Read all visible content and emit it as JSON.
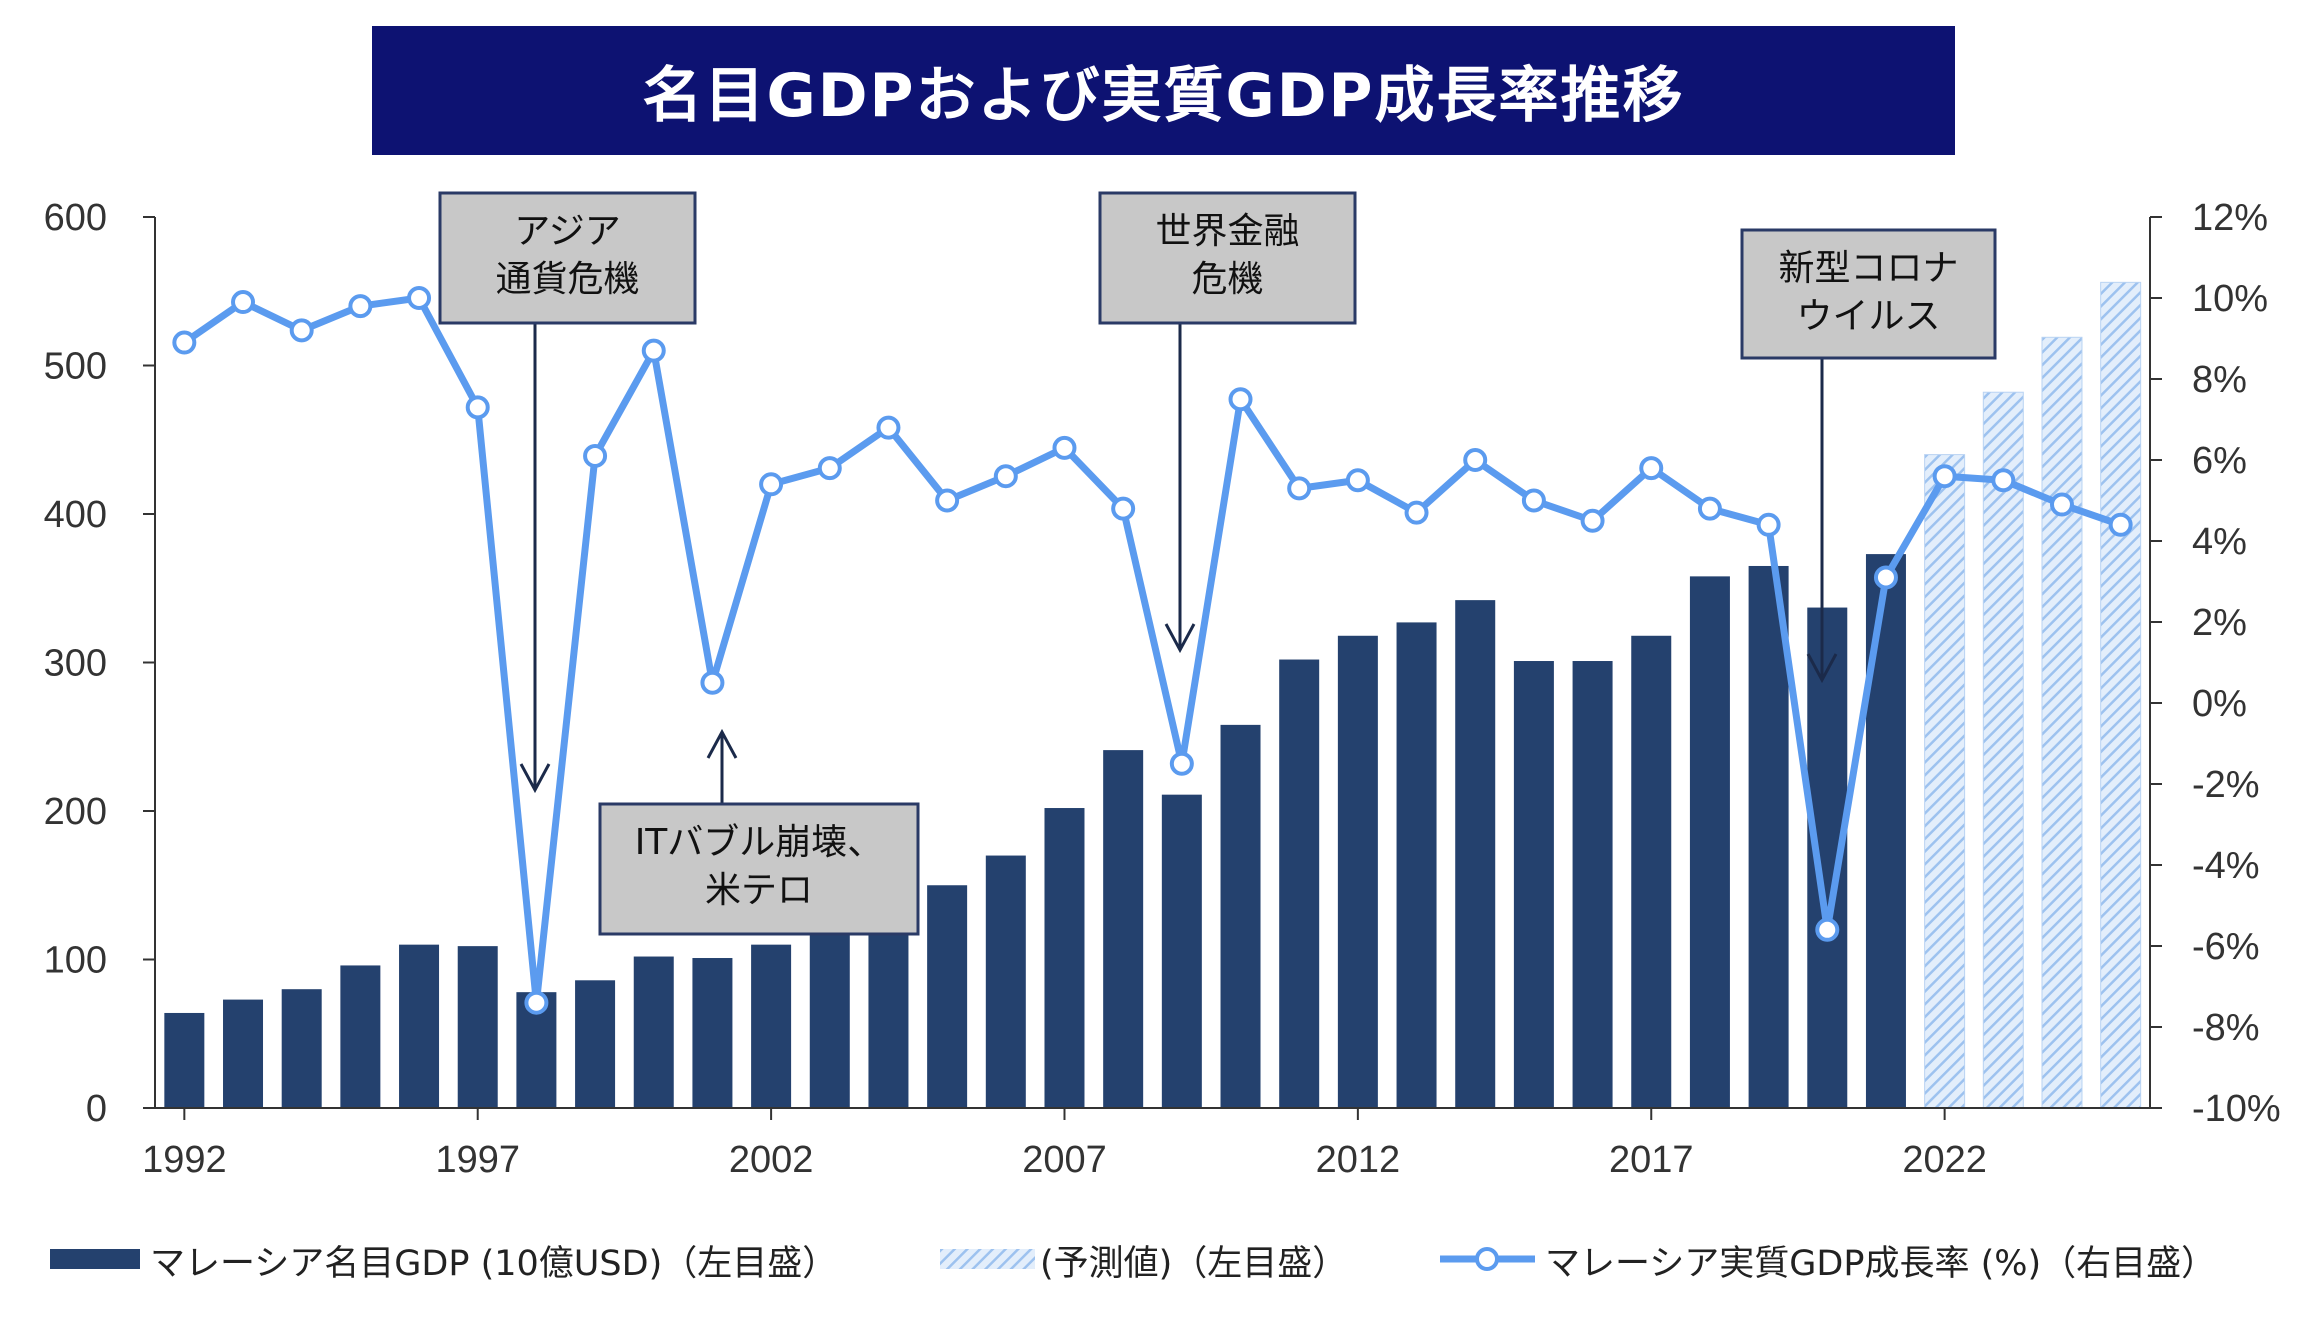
{
  "chart_data": {
    "type": "bar",
    "title": "名目GDPおよび実質GDP成長率推移",
    "x": [
      1992,
      1993,
      1994,
      1995,
      1996,
      1997,
      1998,
      1999,
      2000,
      2001,
      2002,
      2003,
      2004,
      2005,
      2006,
      2007,
      2008,
      2009,
      2010,
      2011,
      2012,
      2013,
      2014,
      2015,
      2016,
      2017,
      2018,
      2019,
      2020,
      2021,
      2022,
      2023,
      2024,
      2025
    ],
    "x_tick_labels": [
      "1992",
      "1997",
      "2002",
      "2007",
      "2012",
      "2017",
      "2022"
    ],
    "y_left": {
      "ylim": [
        0,
        600
      ],
      "ticks": [
        "0",
        "100",
        "200",
        "300",
        "400",
        "500",
        "600"
      ]
    },
    "y_right": {
      "ylim": [
        -10,
        12
      ],
      "ticks": [
        "-10%",
        "-8%",
        "-6%",
        "-4%",
        "-2%",
        "0%",
        "2%",
        "4%",
        "6%",
        "8%",
        "10%",
        "12%"
      ]
    },
    "series": [
      {
        "name": "マレーシア名目GDP (10億USD)（左目盛）",
        "type": "bar",
        "axis": "left",
        "color": "#24416e",
        "values": [
          64,
          73,
          80,
          96,
          110,
          109,
          78,
          86,
          102,
          101,
          110,
          120,
          136,
          150,
          170,
          202,
          241,
          211,
          258,
          302,
          318,
          327,
          342,
          301,
          301,
          318,
          358,
          365,
          337,
          373,
          null,
          null,
          null,
          null
        ]
      },
      {
        "name": "(予測値)（左目盛）",
        "type": "bar-hatched",
        "axis": "left",
        "color": "#a9c8ef",
        "values": [
          null,
          null,
          null,
          null,
          null,
          null,
          null,
          null,
          null,
          null,
          null,
          null,
          null,
          null,
          null,
          null,
          null,
          null,
          null,
          null,
          null,
          null,
          null,
          null,
          null,
          null,
          null,
          null,
          null,
          null,
          440,
          482,
          519,
          556
        ]
      },
      {
        "name": "マレーシア実質GDP成長率 (%)（右目盛）",
        "type": "line",
        "axis": "right",
        "color": "#5b9bef",
        "values": [
          8.9,
          9.9,
          9.2,
          9.8,
          10.0,
          7.3,
          -7.4,
          6.1,
          8.7,
          0.5,
          5.4,
          5.8,
          6.8,
          5.0,
          5.6,
          6.3,
          4.8,
          -1.5,
          7.5,
          5.3,
          5.5,
          4.7,
          6.0,
          5.0,
          4.5,
          5.8,
          4.8,
          4.4,
          -5.6,
          3.1,
          5.6,
          5.5,
          4.9,
          4.4
        ]
      }
    ],
    "annotations": [
      {
        "text": "アジア\n通貨危機",
        "year": 1998,
        "arrow": "down"
      },
      {
        "text": "ITバブル崩壊、\n米テロ",
        "year": 2001,
        "arrow": "up"
      },
      {
        "text": "世界金融\n危機",
        "year": 2009,
        "arrow": "down"
      },
      {
        "text": "新型コロナ\nウイルス",
        "year": 2020,
        "arrow": "down"
      }
    ],
    "legend_position": "bottom"
  }
}
